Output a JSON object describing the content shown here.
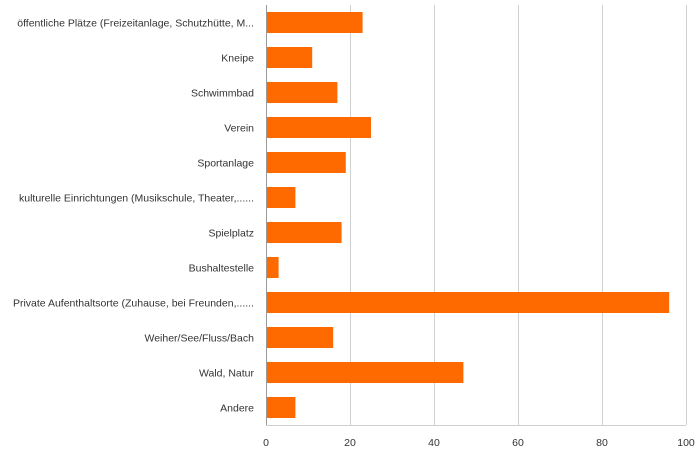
{
  "chart_data": {
    "type": "bar",
    "orientation": "horizontal",
    "categories": [
      "öffentliche Plätze (Freizeitanlage, Schutzhütte, M...",
      "Kneipe",
      "Schwimmbad",
      "Verein",
      "Sportanlage",
      "kulturelle Einrichtungen (Musikschule, Theater,......",
      "Spielplatz",
      "Bushaltestelle",
      "Private Aufenthaltsorte (Zuhause, bei Freunden,......",
      "Weiher/See/Fluss/Bach",
      "Wald, Natur",
      "Andere"
    ],
    "values": [
      23,
      11,
      17,
      25,
      19,
      7,
      18,
      3,
      96,
      16,
      47,
      7
    ],
    "xlim": [
      0,
      100
    ],
    "xticks": [
      0,
      20,
      40,
      60,
      80,
      100
    ],
    "grid": true,
    "bar_color": "#ff6a00",
    "title": "",
    "xlabel": "",
    "ylabel": ""
  }
}
